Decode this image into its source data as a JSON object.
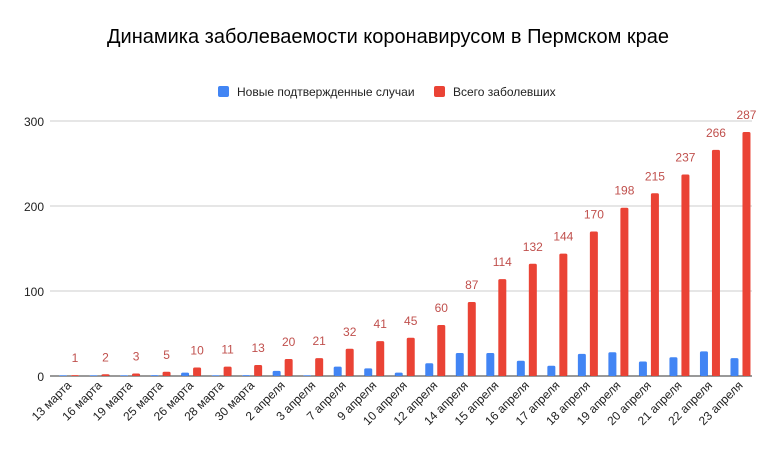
{
  "chart_data": {
    "type": "bar",
    "title": "Динамика заболеваемости коронавирусом в Пермском крае",
    "xlabel": "",
    "ylabel": "",
    "ylim": [
      0,
      300
    ],
    "yticks": [
      0,
      100,
      200,
      300
    ],
    "grid": true,
    "legend": "top",
    "categories": [
      "13 марта",
      "16 марта",
      "19 марта",
      "25 марта",
      "26 марта",
      "28 марта",
      "30 марта",
      "2 апреля",
      "3 апреля",
      "7 апреля",
      "9 апреля",
      "10 апреля",
      "12 апреля",
      "14 апреля",
      "15 апреля",
      "16 апреля",
      "17 апреля",
      "18 апреля",
      "19 апреля",
      "20 апреля",
      "21 апреля",
      "22 апреля",
      "23 апреля"
    ],
    "series": [
      {
        "name": "Новые подтвержденные случаи",
        "color": "#4285f4",
        "values": [
          0,
          0,
          0,
          1,
          4,
          0,
          1,
          6,
          0,
          11,
          9,
          4,
          15,
          27,
          27,
          18,
          12,
          26,
          28,
          17,
          22,
          29,
          21
        ]
      },
      {
        "name": "Всего заболевших",
        "color": "#ea4335",
        "data_labels": true,
        "label_color": "#c0504d",
        "values": [
          1,
          2,
          3,
          5,
          10,
          11,
          13,
          20,
          21,
          32,
          41,
          45,
          60,
          87,
          114,
          132,
          144,
          170,
          198,
          215,
          237,
          266,
          287
        ]
      }
    ]
  }
}
